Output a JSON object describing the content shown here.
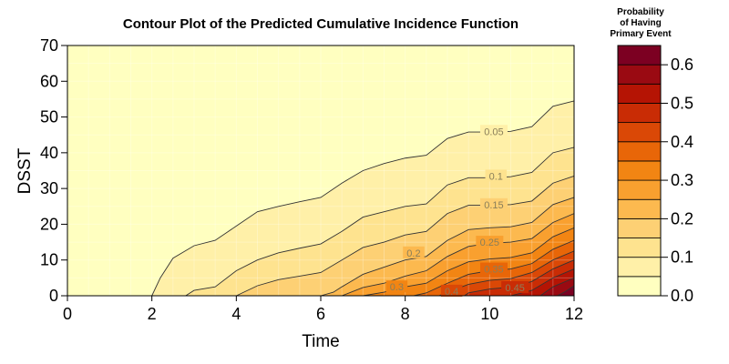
{
  "chart_data": {
    "type": "contour",
    "title": "Contour Plot of the Predicted Cumulative Incidence Function",
    "xlabel": "Time",
    "ylabel": "DSST",
    "xlim": [
      0,
      12
    ],
    "ylim": [
      0,
      70
    ],
    "xticks": [
      0,
      2,
      4,
      6,
      8,
      10,
      12
    ],
    "yticks": [
      0,
      10,
      20,
      30,
      40,
      50,
      60,
      70
    ],
    "colorbar": {
      "title_lines": [
        "Probability",
        "of Having",
        "Primary Event"
      ],
      "range": [
        0,
        0.65
      ],
      "ticks": [
        0,
        0.1,
        0.2,
        0.3,
        0.4,
        0.5,
        0.6
      ],
      "tick_labels": [
        "0.0",
        "0.1",
        "0.2",
        "0.3",
        "0.4",
        "0.5",
        "0.6"
      ],
      "colors": [
        "#ffffc0",
        "#fff0a8",
        "#fee38f",
        "#fdd074",
        "#fcb94f",
        "#f9a02f",
        "#f28513",
        "#e86608",
        "#da4806",
        "#c92c05",
        "#b51404",
        "#9a0a12",
        "#7c0022"
      ]
    },
    "contours": [
      {
        "level": 0.05,
        "label": "0.05",
        "label_x": 10.1,
        "label_y": 46,
        "points": [
          [
            2.0,
            0
          ],
          [
            2.2,
            5
          ],
          [
            2.5,
            10.5
          ],
          [
            3.0,
            14
          ],
          [
            3.5,
            15.5
          ],
          [
            4.0,
            19.5
          ],
          [
            4.5,
            23.5
          ],
          [
            5.0,
            25
          ],
          [
            5.5,
            26.3
          ],
          [
            6.0,
            27.5
          ],
          [
            6.5,
            31.5
          ],
          [
            7.0,
            35
          ],
          [
            7.5,
            37
          ],
          [
            8.0,
            38.5
          ],
          [
            8.5,
            39.3
          ],
          [
            9.0,
            44
          ],
          [
            9.5,
            45.8
          ],
          [
            10.0,
            45.8
          ],
          [
            10.5,
            46
          ],
          [
            11.0,
            47.3
          ],
          [
            11.5,
            53
          ],
          [
            12.0,
            54.5
          ]
        ]
      },
      {
        "level": 0.1,
        "label": "0.1",
        "label_x": 10.15,
        "label_y": 33.5,
        "points": [
          [
            2.8,
            0
          ],
          [
            3.0,
            1.5
          ],
          [
            3.5,
            2.5
          ],
          [
            4.0,
            7
          ],
          [
            4.5,
            10
          ],
          [
            5.0,
            12
          ],
          [
            5.5,
            13.3
          ],
          [
            6.0,
            14.5
          ],
          [
            6.5,
            18
          ],
          [
            7.0,
            22
          ],
          [
            7.5,
            23.5
          ],
          [
            8.0,
            25
          ],
          [
            8.5,
            25.7
          ],
          [
            9.0,
            31
          ],
          [
            9.5,
            33
          ],
          [
            10.0,
            33
          ],
          [
            10.5,
            33.3
          ],
          [
            11.0,
            34.5
          ],
          [
            11.5,
            40
          ],
          [
            12.0,
            41.5
          ]
        ]
      },
      {
        "level": 0.15,
        "label": "0.15",
        "label_x": 10.1,
        "label_y": 25.5,
        "points": [
          [
            4.0,
            0
          ],
          [
            4.5,
            2.8
          ],
          [
            5.0,
            4.5
          ],
          [
            5.5,
            5.5
          ],
          [
            6.0,
            6.5
          ],
          [
            6.5,
            10
          ],
          [
            7.0,
            13.5
          ],
          [
            7.5,
            15
          ],
          [
            8.0,
            17
          ],
          [
            8.5,
            18
          ],
          [
            9.0,
            23
          ],
          [
            9.5,
            25.3
          ],
          [
            10.0,
            25.3
          ],
          [
            10.5,
            25.5
          ],
          [
            11.0,
            26.5
          ],
          [
            11.5,
            31.5
          ],
          [
            12.0,
            33.5
          ]
        ]
      },
      {
        "level": 0.2,
        "label": "0.2",
        "label_x": 8.2,
        "label_y": 12,
        "points": [
          [
            6.0,
            0
          ],
          [
            6.3,
            1
          ],
          [
            6.5,
            2.5
          ],
          [
            7.0,
            6
          ],
          [
            7.5,
            8
          ],
          [
            8.0,
            10
          ],
          [
            8.5,
            11
          ],
          [
            9.0,
            15.5
          ],
          [
            9.5,
            18.5
          ],
          [
            10.0,
            19
          ],
          [
            10.5,
            19.3
          ],
          [
            11.0,
            20.5
          ],
          [
            11.5,
            25.5
          ],
          [
            12.0,
            27.5
          ]
        ]
      },
      {
        "level": 0.25,
        "label": "0.25",
        "label_x": 10.0,
        "label_y": 15,
        "points": [
          [
            6.5,
            0
          ],
          [
            7.0,
            2.3
          ],
          [
            7.5,
            3.5
          ],
          [
            8.0,
            5.5
          ],
          [
            8.5,
            7
          ],
          [
            9.0,
            11
          ],
          [
            9.5,
            13.8
          ],
          [
            10.0,
            14.7
          ],
          [
            10.5,
            15
          ],
          [
            11.0,
            16
          ],
          [
            11.5,
            20.5
          ],
          [
            12.0,
            23
          ]
        ]
      },
      {
        "level": 0.3,
        "label": "0.3",
        "label_x": 7.8,
        "label_y": 2.5,
        "points": [
          [
            7.0,
            0
          ],
          [
            7.5,
            1
          ],
          [
            8.0,
            2.5
          ],
          [
            8.5,
            3.5
          ],
          [
            9.0,
            7
          ],
          [
            9.5,
            9.5
          ],
          [
            10.0,
            10.3
          ],
          [
            10.5,
            10.7
          ],
          [
            11.0,
            12
          ],
          [
            11.5,
            16.5
          ],
          [
            12.0,
            19
          ]
        ]
      },
      {
        "level": 0.35,
        "label": "0.35",
        "label_x": 10.1,
        "label_y": 7.5,
        "points": [
          [
            8.2,
            0
          ],
          [
            8.5,
            0.8
          ],
          [
            9.0,
            3.5
          ],
          [
            9.5,
            6
          ],
          [
            10.0,
            7
          ],
          [
            10.5,
            7.5
          ],
          [
            11.0,
            9
          ],
          [
            11.5,
            13
          ],
          [
            12.0,
            15.5
          ]
        ]
      },
      {
        "level": 0.4,
        "label": "0.4",
        "label_x": 9.1,
        "label_y": 1.3,
        "points": [
          [
            8.8,
            0
          ],
          [
            9.0,
            1
          ],
          [
            9.5,
            3.2
          ],
          [
            10.0,
            4.3
          ],
          [
            10.5,
            4.8
          ],
          [
            11.0,
            6.5
          ],
          [
            11.5,
            10
          ],
          [
            12.0,
            12.5
          ]
        ]
      },
      {
        "level": 0.45,
        "label": "0.45",
        "label_x": 10.6,
        "label_y": 2.3,
        "points": [
          [
            9.4,
            0
          ],
          [
            9.5,
            0.8
          ],
          [
            10.0,
            1.9
          ],
          [
            10.5,
            2.4
          ],
          [
            11.0,
            4
          ],
          [
            11.5,
            7.5
          ],
          [
            12.0,
            10
          ]
        ]
      },
      {
        "level": 0.5,
        "label": "",
        "label_x": 0,
        "label_y": 0,
        "points": [
          [
            10.5,
            0
          ],
          [
            11.0,
            1.5
          ],
          [
            11.5,
            5
          ],
          [
            12.0,
            7.5
          ]
        ]
      },
      {
        "level": 0.55,
        "label": "",
        "label_x": 0,
        "label_y": 0,
        "points": [
          [
            11.2,
            0
          ],
          [
            11.5,
            2.5
          ],
          [
            12.0,
            5
          ]
        ]
      },
      {
        "level": 0.6,
        "label": "",
        "label_x": 0,
        "label_y": 0,
        "points": [
          [
            11.6,
            0
          ],
          [
            11.8,
            1.2
          ],
          [
            12.0,
            2.8
          ]
        ]
      }
    ]
  }
}
